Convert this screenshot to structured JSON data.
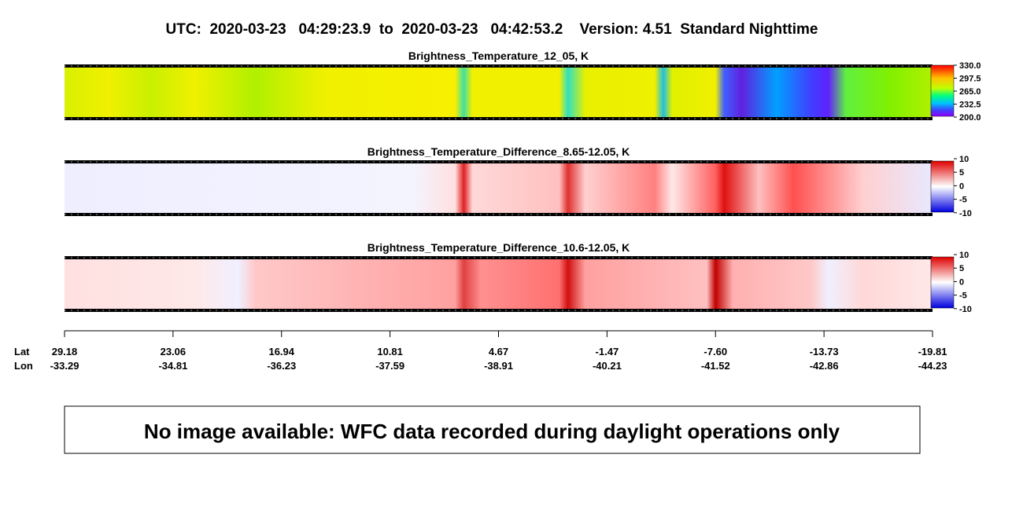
{
  "title": "UTC:  2020-03-23   04:29:23.9  to  2020-03-23   04:42:53.2    Version: 4.51  Standard Nighttime",
  "panels": [
    {
      "title": "Brightness_Temperature_12_05, K",
      "colorbar_labels": [
        "330.0",
        "297.5",
        "265.0",
        "232.5",
        "200.0"
      ]
    },
    {
      "title": "Brightness_Temperature_Difference_8.65-12.05, K",
      "colorbar_labels": [
        "10",
        "5",
        "0",
        "-5",
        "-10"
      ]
    },
    {
      "title": "Brightness_Temperature_Difference_10.6-12.05, K",
      "colorbar_labels": [
        "10",
        "5",
        "0",
        "-5",
        "-10"
      ]
    }
  ],
  "axis": {
    "lat_label": "Lat",
    "lon_label": "Lon",
    "lat": [
      "29.18",
      "23.06",
      "16.94",
      "10.81",
      "4.67",
      "-1.47",
      "-7.60",
      "-13.73",
      "-19.81"
    ],
    "lon": [
      "-33.29",
      "-34.81",
      "-36.23",
      "-37.59",
      "-38.91",
      "-40.21",
      "-41.52",
      "-42.86",
      "-44.23"
    ]
  },
  "message": "No image available: WFC data recorded during daylight operations only"
}
